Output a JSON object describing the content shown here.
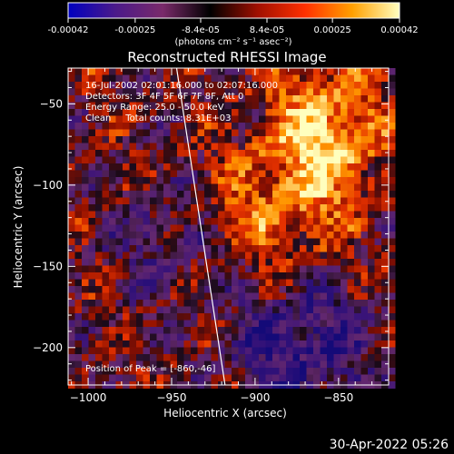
{
  "chart_data": {
    "type": "heatmap",
    "title": "Reconstructed RHESSI Image",
    "xlabel": "Heliocentric X (arcsec)",
    "ylabel": "Heliocentric Y (arcsec)",
    "xlim": [
      -1012,
      -820
    ],
    "ylim": [
      -223,
      -28
    ],
    "xticks": [
      -1000,
      -950,
      -900,
      -850
    ],
    "yticks": [
      -50,
      -100,
      -150,
      -200
    ],
    "colorbar": {
      "ticks": [
        "-0.00042",
        "-0.00025",
        "-8.4e-05",
        "8.4e-05",
        "0.00025",
        "0.00042"
      ],
      "values": [
        -0.00042,
        -0.00025,
        -8.4e-05,
        8.4e-05,
        0.00025,
        0.00042
      ],
      "range": [
        -0.00042,
        0.00042
      ],
      "unit_label": "(photons cm⁻² s⁻¹ asec⁻²)",
      "colors": [
        "#0000c0",
        "#4b1a8a",
        "#7a2a6a",
        "#000000",
        "#a01000",
        "#ff3000",
        "#ffa000",
        "#ffffc0"
      ]
    },
    "annotations": [
      "16-Jul-2002 02:01:16.000 to 02:07:16.000",
      "Detectors: 3F 4F 5F 6F 7F 8F, Att 0",
      "Energy Range: 25.0 - 50.0 keV",
      "Clean     Total counts: 8.31E+03"
    ],
    "peak_label": "Position of Peak = [-860,-46]",
    "peak": [
      -860,
      -46
    ],
    "limb_line": [
      [
        -947,
        -28
      ],
      [
        -918,
        -223
      ]
    ]
  },
  "footer": {
    "timestamp": "30-Apr-2022 05:26"
  },
  "colors": {
    "axis": "#ffffff",
    "limb": "#ffffff"
  }
}
